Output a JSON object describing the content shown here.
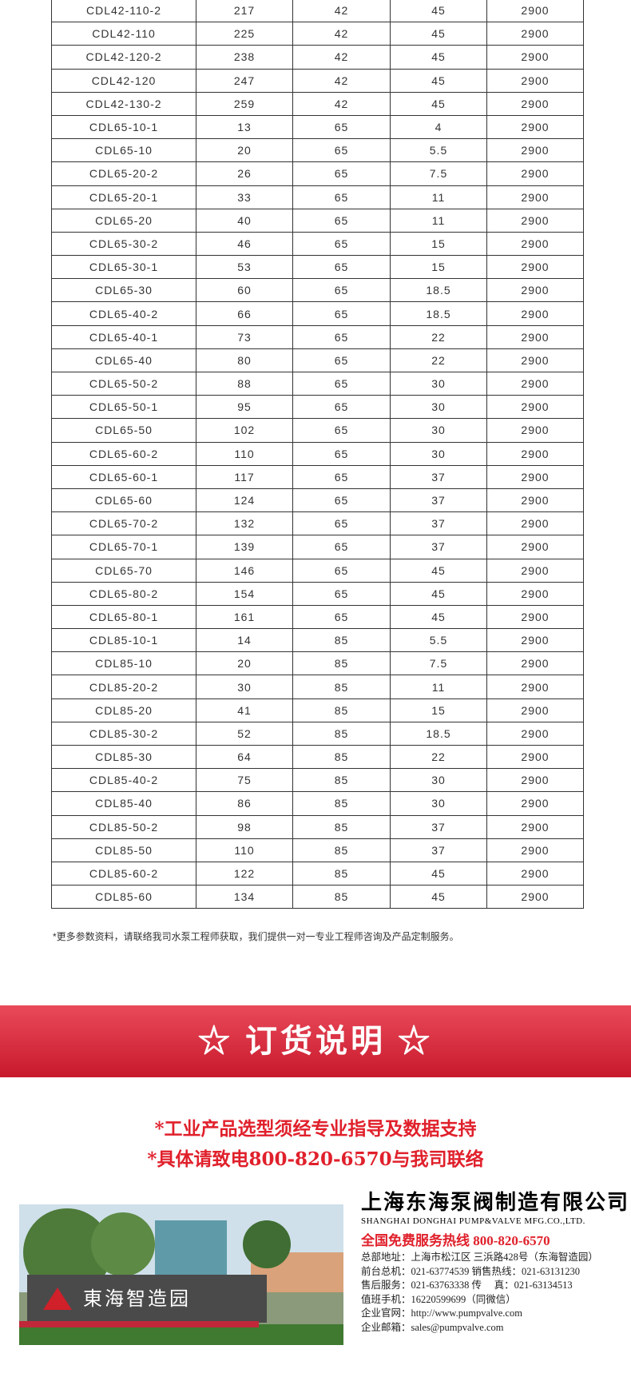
{
  "table": {
    "rows": [
      [
        "CDL42-110-2",
        "217",
        "42",
        "45",
        "2900"
      ],
      [
        "CDL42-110",
        "225",
        "42",
        "45",
        "2900"
      ],
      [
        "CDL42-120-2",
        "238",
        "42",
        "45",
        "2900"
      ],
      [
        "CDL42-120",
        "247",
        "42",
        "45",
        "2900"
      ],
      [
        "CDL42-130-2",
        "259",
        "42",
        "45",
        "2900"
      ],
      [
        "CDL65-10-1",
        "13",
        "65",
        "4",
        "2900"
      ],
      [
        "CDL65-10",
        "20",
        "65",
        "5.5",
        "2900"
      ],
      [
        "CDL65-20-2",
        "26",
        "65",
        "7.5",
        "2900"
      ],
      [
        "CDL65-20-1",
        "33",
        "65",
        "11",
        "2900"
      ],
      [
        "CDL65-20",
        "40",
        "65",
        "11",
        "2900"
      ],
      [
        "CDL65-30-2",
        "46",
        "65",
        "15",
        "2900"
      ],
      [
        "CDL65-30-1",
        "53",
        "65",
        "15",
        "2900"
      ],
      [
        "CDL65-30",
        "60",
        "65",
        "18.5",
        "2900"
      ],
      [
        "CDL65-40-2",
        "66",
        "65",
        "18.5",
        "2900"
      ],
      [
        "CDL65-40-1",
        "73",
        "65",
        "22",
        "2900"
      ],
      [
        "CDL65-40",
        "80",
        "65",
        "22",
        "2900"
      ],
      [
        "CDL65-50-2",
        "88",
        "65",
        "30",
        "2900"
      ],
      [
        "CDL65-50-1",
        "95",
        "65",
        "30",
        "2900"
      ],
      [
        "CDL65-50",
        "102",
        "65",
        "30",
        "2900"
      ],
      [
        "CDL65-60-2",
        "110",
        "65",
        "30",
        "2900"
      ],
      [
        "CDL65-60-1",
        "117",
        "65",
        "37",
        "2900"
      ],
      [
        "CDL65-60",
        "124",
        "65",
        "37",
        "2900"
      ],
      [
        "CDL65-70-2",
        "132",
        "65",
        "37",
        "2900"
      ],
      [
        "CDL65-70-1",
        "139",
        "65",
        "37",
        "2900"
      ],
      [
        "CDL65-70",
        "146",
        "65",
        "45",
        "2900"
      ],
      [
        "CDL65-80-2",
        "154",
        "65",
        "45",
        "2900"
      ],
      [
        "CDL65-80-1",
        "161",
        "65",
        "45",
        "2900"
      ],
      [
        "CDL85-10-1",
        "14",
        "85",
        "5.5",
        "2900"
      ],
      [
        "CDL85-10",
        "20",
        "85",
        "7.5",
        "2900"
      ],
      [
        "CDL85-20-2",
        "30",
        "85",
        "11",
        "2900"
      ],
      [
        "CDL85-20",
        "41",
        "85",
        "15",
        "2900"
      ],
      [
        "CDL85-30-2",
        "52",
        "85",
        "18.5",
        "2900"
      ],
      [
        "CDL85-30",
        "64",
        "85",
        "22",
        "2900"
      ],
      [
        "CDL85-40-2",
        "75",
        "85",
        "30",
        "2900"
      ],
      [
        "CDL85-40",
        "86",
        "85",
        "30",
        "2900"
      ],
      [
        "CDL85-50-2",
        "98",
        "85",
        "37",
        "2900"
      ],
      [
        "CDL85-50",
        "110",
        "85",
        "37",
        "2900"
      ],
      [
        "CDL85-60-2",
        "122",
        "85",
        "45",
        "2900"
      ],
      [
        "CDL85-60",
        "134",
        "85",
        "45",
        "2900"
      ]
    ]
  },
  "note": "*更多参数资料，请联络我司水泵工程师获取，我们提供一对一专业工程师咨询及产品定制服务。",
  "banner": {
    "title": "☆ 订货说明 ☆"
  },
  "notice": [
    "*工业产品选型须经专业指导及数据支持",
    "*具体请致电800-820-6570与我司联络"
  ],
  "photo": {
    "sign": "東海智造园"
  },
  "company": {
    "name": "上海东海泵阀制造有限公司",
    "name_en": "SHANGHAI DONGHAI PUMP&VALVE MFG.CO.,LTD.",
    "hotline": "全国免费服务热线  800-820-6570",
    "lines": [
      "总部地址：上海市松江区 三浜路428号（东海智造园）",
      "前台总机：021-63774539   销售热线：021-63131230",
      "售后服务：021-63763338   传　 真：021-63134513",
      "值班手机：16220599699（同微信）",
      "企业官网：http://www.pumpvalve.com",
      "企业邮箱：sales@pumpvalve.com"
    ]
  }
}
